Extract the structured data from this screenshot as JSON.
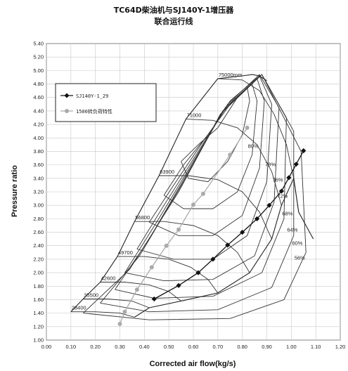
{
  "chart_data": {
    "type": "line",
    "title": [
      "TC64D柴油机与SJ140Y-1增压器",
      "联合运行线"
    ],
    "xlabel": "Corrected air flow(kg/s)",
    "ylabel": "Pressure ratio",
    "xlim": [
      0.0,
      1.2
    ],
    "ylim": [
      1.0,
      5.4
    ],
    "x_ticks": [
      "0.00",
      "0.10",
      "0.20",
      "0.30",
      "0.40",
      "0.50",
      "0.60",
      "0.70",
      "0.80",
      "0.90",
      "1.00",
      "1.10",
      "1.20"
    ],
    "y_ticks": [
      "1.00",
      "1.20",
      "1.40",
      "1.60",
      "1.80",
      "2.00",
      "2.20",
      "2.40",
      "2.60",
      "2.80",
      "3.00",
      "3.20",
      "3.40",
      "3.60",
      "3.80",
      "4.00",
      "4.20",
      "4.40",
      "4.60",
      "4.80",
      "5.00",
      "5.20",
      "5.40"
    ],
    "grid": true,
    "legend_position": "upper-left",
    "series": [
      {
        "name": "SJ140Y-1_29",
        "color": "#111111",
        "marker": "diamond",
        "x": [
          0.44,
          0.54,
          0.62,
          0.68,
          0.74,
          0.8,
          0.86,
          0.91,
          0.96,
          0.99,
          1.02,
          1.05
        ],
        "y": [
          1.61,
          1.81,
          2.0,
          2.2,
          2.41,
          2.6,
          2.8,
          3.0,
          3.21,
          3.41,
          3.61,
          3.81
        ]
      },
      {
        "name": "1500转负荷特性",
        "color": "#aaaaaa",
        "marker": "circle",
        "x": [
          0.3,
          0.32,
          0.37,
          0.43,
          0.49,
          0.54,
          0.6,
          0.64,
          0.75,
          0.82
        ],
        "y": [
          1.24,
          1.42,
          1.75,
          2.08,
          2.4,
          2.64,
          3.01,
          3.17,
          3.75,
          4.15
        ]
      }
    ],
    "speed_lines": [
      {
        "label": "28400",
        "x": [
          0.1,
          0.2,
          0.3,
          0.36
        ],
        "y": [
          1.42,
          1.42,
          1.4,
          1.34
        ]
      },
      {
        "label": "35500",
        "x": [
          0.15,
          0.25,
          0.35,
          0.42
        ],
        "y": [
          1.61,
          1.61,
          1.58,
          1.48
        ]
      },
      {
        "label": "42600",
        "x": [
          0.22,
          0.32,
          0.42,
          0.5,
          0.55
        ],
        "y": [
          1.86,
          1.86,
          1.82,
          1.72,
          1.58
        ]
      },
      {
        "label": "49700",
        "x": [
          0.29,
          0.4,
          0.5,
          0.59,
          0.66,
          0.7
        ],
        "y": [
          2.24,
          2.24,
          2.2,
          2.08,
          1.9,
          1.7
        ]
      },
      {
        "label": "56800",
        "x": [
          0.36,
          0.48,
          0.6,
          0.7,
          0.78,
          0.83
        ],
        "y": [
          2.76,
          2.76,
          2.7,
          2.55,
          2.3,
          2.0
        ]
      },
      {
        "label": "63900",
        "x": [
          0.46,
          0.58,
          0.7,
          0.8,
          0.87,
          0.92
        ],
        "y": [
          3.44,
          3.44,
          3.38,
          3.2,
          2.9,
          2.5
        ]
      },
      {
        "label": "71000",
        "x": [
          0.57,
          0.68,
          0.78,
          0.86,
          0.92,
          0.96
        ],
        "y": [
          4.28,
          4.26,
          4.15,
          3.9,
          3.5,
          3.0
        ]
      },
      {
        "label": "75000rpm",
        "x": [
          0.7,
          0.8,
          0.87,
          0.93,
          0.98,
          1.01,
          1.03
        ],
        "y": [
          4.88,
          4.86,
          4.7,
          4.35,
          3.9,
          3.4,
          2.9
        ]
      }
    ],
    "surge_line": {
      "x": [
        0.1,
        0.15,
        0.22,
        0.29,
        0.36,
        0.46,
        0.57,
        0.7,
        0.8,
        0.84,
        0.87,
        0.9
      ],
      "y": [
        1.42,
        1.61,
        1.86,
        2.24,
        2.76,
        3.44,
        4.28,
        4.88,
        4.92,
        4.94,
        4.92,
        4.85
      ]
    },
    "choke_line": {
      "x": [
        0.36,
        0.42,
        0.55,
        0.7,
        0.83,
        0.92,
        0.96,
        1.01,
        1.03,
        1.06,
        1.09
      ],
      "y": [
        1.34,
        1.48,
        1.58,
        1.7,
        2.0,
        2.5,
        3.0,
        3.4,
        2.9,
        2.7,
        2.5
      ]
    },
    "efficiency_islands": [
      {
        "label": "80%",
        "x": [
          0.55,
          0.62,
          0.7,
          0.78,
          0.82,
          0.83,
          0.8,
          0.74,
          0.66,
          0.58,
          0.55
        ],
        "y": [
          3.65,
          3.9,
          4.15,
          4.6,
          4.75,
          4.55,
          4.05,
          3.65,
          3.35,
          3.4,
          3.65
        ]
      },
      {
        "label": "78%",
        "x": [
          0.48,
          0.56,
          0.66,
          0.76,
          0.84,
          0.86,
          0.84,
          0.78,
          0.68,
          0.56,
          0.48
        ],
        "y": [
          3.15,
          3.6,
          4.05,
          4.55,
          4.8,
          4.55,
          3.75,
          3.2,
          2.95,
          2.95,
          3.15
        ]
      },
      {
        "label": "76%",
        "x": [
          0.42,
          0.52,
          0.64,
          0.76,
          0.86,
          0.89,
          0.87,
          0.8,
          0.68,
          0.54,
          0.42
        ],
        "y": [
          2.75,
          3.3,
          3.95,
          4.55,
          4.88,
          4.55,
          3.55,
          2.85,
          2.55,
          2.55,
          2.75
        ]
      },
      {
        "label": "72%",
        "x": [
          0.37,
          0.48,
          0.62,
          0.75,
          0.87,
          0.92,
          0.9,
          0.82,
          0.68,
          0.52,
          0.37
        ],
        "y": [
          2.35,
          3.0,
          3.8,
          4.55,
          4.92,
          4.5,
          3.35,
          2.55,
          2.2,
          2.2,
          2.35
        ]
      },
      {
        "label": "68%",
        "x": [
          0.32,
          0.45,
          0.6,
          0.74,
          0.87,
          0.95,
          0.93,
          0.85,
          0.68,
          0.48,
          0.32
        ],
        "y": [
          2.0,
          2.75,
          3.65,
          4.5,
          4.94,
          4.45,
          3.05,
          2.25,
          1.9,
          1.88,
          2.0
        ]
      },
      {
        "label": "64%",
        "x": [
          0.28,
          0.42,
          0.58,
          0.73,
          0.88,
          0.98,
          0.97,
          0.88,
          0.68,
          0.44,
          0.28
        ],
        "y": [
          1.75,
          2.5,
          3.5,
          4.45,
          4.94,
          4.3,
          2.8,
          2.0,
          1.65,
          1.62,
          1.75
        ]
      },
      {
        "label": "60%",
        "x": [
          0.22,
          0.38,
          0.56,
          0.72,
          0.88,
          1.01,
          1.01,
          0.92,
          0.7,
          0.42,
          0.22
        ],
        "y": [
          1.55,
          2.25,
          3.35,
          4.4,
          4.94,
          4.1,
          2.55,
          1.78,
          1.45,
          1.42,
          1.55
        ]
      },
      {
        "label": "56%",
        "x": [
          0.15,
          0.34,
          0.54,
          0.71,
          0.88,
          1.04,
          1.06,
          0.97,
          0.75,
          0.42,
          0.15
        ],
        "y": [
          1.4,
          2.05,
          3.2,
          4.35,
          4.94,
          3.8,
          2.3,
          1.6,
          1.32,
          1.3,
          1.4
        ]
      }
    ],
    "annotations": [
      {
        "text": "75000rpm",
        "x": 0.7,
        "y": 4.88
      },
      {
        "text": "71000",
        "x": 0.57,
        "y": 4.28
      },
      {
        "text": "63900",
        "x": 0.46,
        "y": 3.44
      },
      {
        "text": "56800",
        "x": 0.36,
        "y": 2.76
      },
      {
        "text": "49700",
        "x": 0.29,
        "y": 2.24
      },
      {
        "text": "42600",
        "x": 0.22,
        "y": 1.86
      },
      {
        "text": "35500",
        "x": 0.15,
        "y": 1.61
      },
      {
        "text": "28400",
        "x": 0.1,
        "y": 1.42
      },
      {
        "text": "80%",
        "x": 0.82,
        "y": 3.82
      },
      {
        "text": "78%",
        "x": 0.89,
        "y": 3.55
      },
      {
        "text": "76%",
        "x": 0.92,
        "y": 3.32
      },
      {
        "text": "72%",
        "x": 0.94,
        "y": 3.08
      },
      {
        "text": "68%",
        "x": 0.96,
        "y": 2.82
      },
      {
        "text": "64%",
        "x": 0.98,
        "y": 2.58
      },
      {
        "text": "60%",
        "x": 1.0,
        "y": 2.38
      },
      {
        "text": "56%",
        "x": 1.01,
        "y": 2.16
      }
    ]
  }
}
